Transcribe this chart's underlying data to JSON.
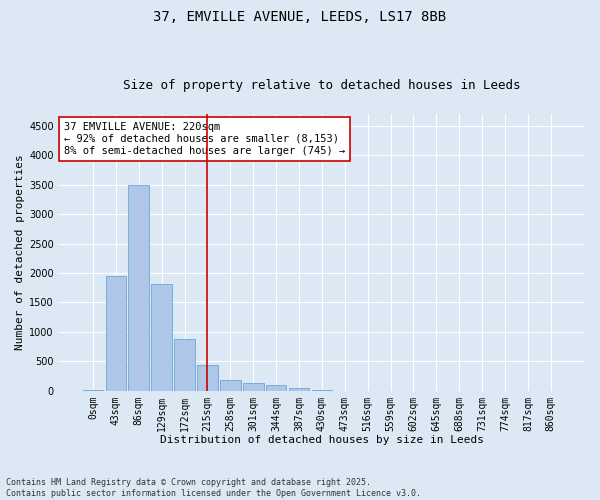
{
  "title_line1": "37, EMVILLE AVENUE, LEEDS, LS17 8BB",
  "title_line2": "Size of property relative to detached houses in Leeds",
  "xlabel": "Distribution of detached houses by size in Leeds",
  "ylabel": "Number of detached properties",
  "bar_labels": [
    "0sqm",
    "43sqm",
    "86sqm",
    "129sqm",
    "172sqm",
    "215sqm",
    "258sqm",
    "301sqm",
    "344sqm",
    "387sqm",
    "430sqm",
    "473sqm",
    "516sqm",
    "559sqm",
    "602sqm",
    "645sqm",
    "688sqm",
    "731sqm",
    "774sqm",
    "817sqm",
    "860sqm"
  ],
  "bar_values": [
    5,
    1950,
    3500,
    1820,
    870,
    430,
    190,
    130,
    90,
    50,
    10,
    3,
    0,
    0,
    0,
    0,
    0,
    0,
    0,
    0,
    0
  ],
  "bar_color": "#aec6e8",
  "bar_edge_color": "#5b9bd5",
  "vline_x": 5,
  "vline_color": "#cc0000",
  "annotation_text": "37 EMVILLE AVENUE: 220sqm\n← 92% of detached houses are smaller (8,153)\n8% of semi-detached houses are larger (745) →",
  "annotation_box_color": "#ffffff",
  "annotation_box_edge": "#cc0000",
  "ylim": [
    0,
    4700
  ],
  "yticks": [
    0,
    500,
    1000,
    1500,
    2000,
    2500,
    3000,
    3500,
    4000,
    4500
  ],
  "background_color": "#dce9f5",
  "plot_background": "#dce9f5",
  "grid_color": "#ffffff",
  "footnote": "Contains HM Land Registry data © Crown copyright and database right 2025.\nContains public sector information licensed under the Open Government Licence v3.0.",
  "title_fontsize": 10,
  "subtitle_fontsize": 9,
  "axis_label_fontsize": 8,
  "tick_fontsize": 7,
  "annotation_fontsize": 7.5
}
